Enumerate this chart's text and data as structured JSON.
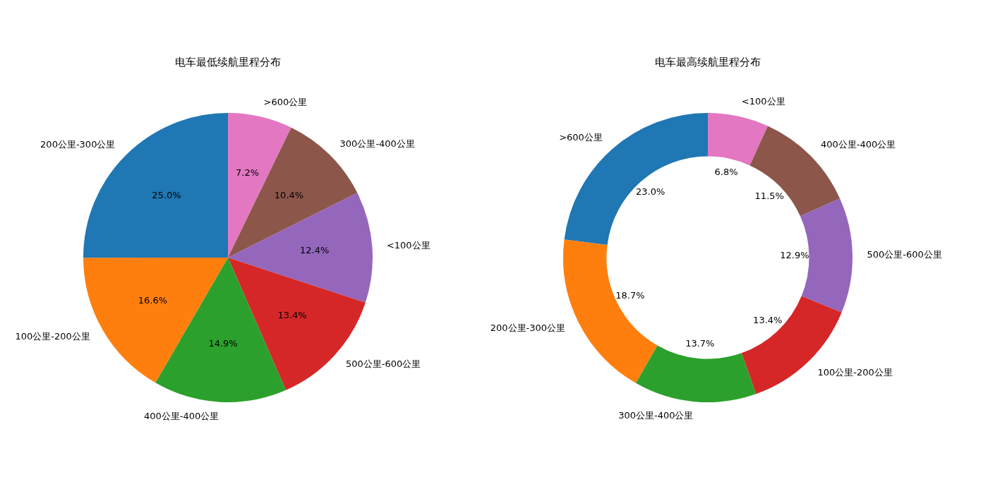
{
  "chart_data": [
    {
      "type": "pie",
      "title": "电车最低续航里程分布",
      "categories": [
        ">600公里",
        "300公里-400公里",
        "<100公里",
        "500公里-600公里",
        "400公里-400公里",
        "100公里-200公里",
        "200公里-300公里"
      ],
      "values": [
        7.2,
        10.4,
        12.4,
        13.4,
        14.9,
        16.6,
        25.0
      ],
      "value_labels": [
        "7.2%",
        "10.4%",
        "12.4%",
        "13.4%",
        "14.9%",
        "16.6%",
        "25.0%"
      ],
      "colors": [
        "#e377c2",
        "#8c564b",
        "#9467bd",
        "#d62728",
        "#2ca02c",
        "#ff7f0e",
        "#1f77b4"
      ]
    },
    {
      "type": "donut",
      "title": "电车最高续航里程分布",
      "categories": [
        "<100公里",
        "400公里-400公里",
        "500公里-600公里",
        "100公里-200公里",
        "300公里-400公里",
        "200公里-300公里",
        ">600公里"
      ],
      "values": [
        6.8,
        11.5,
        12.9,
        13.4,
        13.7,
        18.7,
        23.0
      ],
      "value_labels": [
        "6.8%",
        "11.5%",
        "12.9%",
        "13.4%",
        "13.7%",
        "18.7%",
        "23.0%"
      ],
      "colors": [
        "#e377c2",
        "#8c564b",
        "#9467bd",
        "#d62728",
        "#2ca02c",
        "#ff7f0e",
        "#1f77b4"
      ]
    }
  ]
}
